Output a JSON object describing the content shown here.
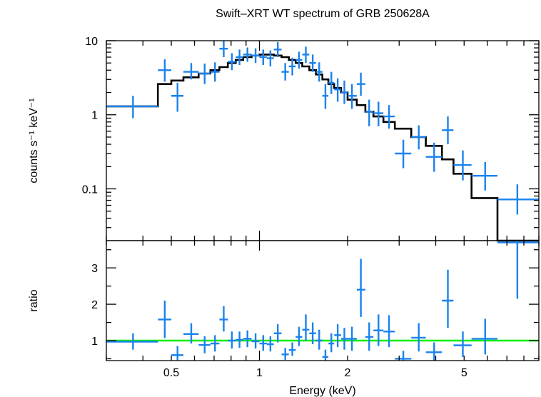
{
  "colors": {
    "data": "#1a82ee",
    "model": "#000000",
    "ratio_line": "#00ee00",
    "axes": "#000000"
  },
  "chart_data": [
    {
      "type": "line",
      "panel": "spectrum",
      "title": "Swift–XRT WT spectrum of GRB 250628A",
      "xlabel": "Energy (keV)",
      "ylabel": "counts s⁻¹ keV⁻¹",
      "xscale": "log",
      "yscale": "log",
      "xlim": [
        0.3,
        9.0
      ],
      "ylim": [
        0.02,
        10
      ],
      "yticks": [
        {
          "v": 0.1,
          "label": "0.1"
        },
        {
          "v": 1,
          "label": "1"
        },
        {
          "v": 10,
          "label": "10"
        }
      ],
      "series": [
        {
          "kind": "model-step",
          "edges": [
            0.3,
            0.45,
            0.5,
            0.55,
            0.62,
            0.68,
            0.73,
            0.78,
            0.83,
            0.88,
            0.94,
            1.0,
            1.06,
            1.12,
            1.19,
            1.26,
            1.33,
            1.4,
            1.48,
            1.56,
            1.64,
            1.72,
            1.8,
            1.9,
            2.0,
            2.15,
            2.3,
            2.45,
            2.65,
            2.9,
            3.3,
            3.7,
            4.2,
            4.6,
            5.3,
            6.5,
            9.0
          ],
          "values": [
            1.3,
            2.6,
            2.9,
            3.2,
            3.6,
            4.0,
            4.4,
            5.0,
            5.5,
            6.0,
            6.3,
            6.5,
            6.5,
            6.3,
            6.0,
            5.5,
            5.0,
            4.5,
            4.0,
            3.5,
            3.0,
            2.6,
            2.3,
            2.0,
            1.6,
            1.35,
            1.1,
            0.95,
            0.8,
            0.65,
            0.5,
            0.38,
            0.25,
            0.16,
            0.075,
            0.015
          ]
        },
        {
          "kind": "data-errorbars",
          "points": [
            {
              "x": 0.37,
              "xlo": 0.3,
              "xhi": 0.45,
              "y": 1.3,
              "ylo": 0.9,
              "yhi": 1.8
            },
            {
              "x": 0.475,
              "xlo": 0.45,
              "xhi": 0.5,
              "y": 4.0,
              "ylo": 2.8,
              "yhi": 5.6
            },
            {
              "x": 0.525,
              "xlo": 0.5,
              "xhi": 0.55,
              "y": 1.8,
              "ylo": 1.1,
              "yhi": 2.7
            },
            {
              "x": 0.585,
              "xlo": 0.55,
              "xhi": 0.62,
              "y": 3.8,
              "ylo": 3.0,
              "yhi": 5.0
            },
            {
              "x": 0.65,
              "xlo": 0.62,
              "xhi": 0.68,
              "y": 3.6,
              "ylo": 2.6,
              "yhi": 4.9
            },
            {
              "x": 0.705,
              "xlo": 0.68,
              "xhi": 0.73,
              "y": 3.8,
              "ylo": 2.8,
              "yhi": 5.1
            },
            {
              "x": 0.755,
              "xlo": 0.73,
              "xhi": 0.78,
              "y": 7.8,
              "ylo": 6.0,
              "yhi": 10.0
            },
            {
              "x": 0.805,
              "xlo": 0.78,
              "xhi": 0.83,
              "y": 5.2,
              "ylo": 4.0,
              "yhi": 6.8
            },
            {
              "x": 0.855,
              "xlo": 0.83,
              "xhi": 0.88,
              "y": 6.0,
              "ylo": 4.7,
              "yhi": 7.6
            },
            {
              "x": 0.91,
              "xlo": 0.88,
              "xhi": 0.94,
              "y": 6.5,
              "ylo": 5.2,
              "yhi": 8.1
            },
            {
              "x": 0.97,
              "xlo": 0.94,
              "xhi": 1.0,
              "y": 6.3,
              "ylo": 5.0,
              "yhi": 7.9
            },
            {
              "x": 1.03,
              "xlo": 1.0,
              "xhi": 1.06,
              "y": 6.0,
              "ylo": 4.7,
              "yhi": 7.6
            },
            {
              "x": 1.09,
              "xlo": 1.06,
              "xhi": 1.12,
              "y": 5.8,
              "ylo": 4.5,
              "yhi": 7.4
            },
            {
              "x": 1.155,
              "xlo": 1.12,
              "xhi": 1.19,
              "y": 7.6,
              "ylo": 6.0,
              "yhi": 9.6
            },
            {
              "x": 1.225,
              "xlo": 1.19,
              "xhi": 1.26,
              "y": 3.8,
              "ylo": 2.9,
              "yhi": 5.0
            },
            {
              "x": 1.295,
              "xlo": 1.26,
              "xhi": 1.33,
              "y": 4.5,
              "ylo": 3.4,
              "yhi": 5.9
            },
            {
              "x": 1.365,
              "xlo": 1.33,
              "xhi": 1.4,
              "y": 5.5,
              "ylo": 4.2,
              "yhi": 7.1
            },
            {
              "x": 1.44,
              "xlo": 1.4,
              "xhi": 1.48,
              "y": 6.5,
              "ylo": 5.0,
              "yhi": 8.3
            },
            {
              "x": 1.52,
              "xlo": 1.48,
              "xhi": 1.56,
              "y": 5.0,
              "ylo": 3.8,
              "yhi": 6.5
            },
            {
              "x": 1.6,
              "xlo": 1.56,
              "xhi": 1.64,
              "y": 3.8,
              "ylo": 2.8,
              "yhi": 5.1
            },
            {
              "x": 1.68,
              "xlo": 1.64,
              "xhi": 1.72,
              "y": 1.8,
              "ylo": 1.2,
              "yhi": 2.6
            },
            {
              "x": 1.76,
              "xlo": 1.72,
              "xhi": 1.8,
              "y": 2.7,
              "ylo": 1.9,
              "yhi": 3.8
            },
            {
              "x": 1.85,
              "xlo": 1.8,
              "xhi": 1.9,
              "y": 2.2,
              "ylo": 1.5,
              "yhi": 3.1
            },
            {
              "x": 1.95,
              "xlo": 1.9,
              "xhi": 2.0,
              "y": 2.0,
              "ylo": 1.4,
              "yhi": 2.9
            },
            {
              "x": 2.07,
              "xlo": 2.0,
              "xhi": 2.15,
              "y": 1.8,
              "ylo": 1.2,
              "yhi": 2.6
            },
            {
              "x": 2.22,
              "xlo": 2.15,
              "xhi": 2.3,
              "y": 2.6,
              "ylo": 1.8,
              "yhi": 3.7
            },
            {
              "x": 2.37,
              "xlo": 2.3,
              "xhi": 2.45,
              "y": 1.1,
              "ylo": 0.7,
              "yhi": 1.6
            },
            {
              "x": 2.55,
              "xlo": 2.45,
              "xhi": 2.65,
              "y": 1.05,
              "ylo": 0.7,
              "yhi": 1.5
            },
            {
              "x": 2.77,
              "xlo": 2.65,
              "xhi": 2.9,
              "y": 0.95,
              "ylo": 0.65,
              "yhi": 1.35
            },
            {
              "x": 3.1,
              "xlo": 2.9,
              "xhi": 3.3,
              "y": 0.3,
              "ylo": 0.19,
              "yhi": 0.46
            },
            {
              "x": 3.5,
              "xlo": 3.3,
              "xhi": 3.7,
              "y": 0.5,
              "ylo": 0.34,
              "yhi": 0.72
            },
            {
              "x": 3.95,
              "xlo": 3.7,
              "xhi": 4.2,
              "y": 0.27,
              "ylo": 0.17,
              "yhi": 0.42
            },
            {
              "x": 4.4,
              "xlo": 4.2,
              "xhi": 4.6,
              "y": 0.62,
              "ylo": 0.4,
              "yhi": 0.95
            },
            {
              "x": 4.95,
              "xlo": 4.6,
              "xhi": 5.3,
              "y": 0.21,
              "ylo": 0.13,
              "yhi": 0.33
            },
            {
              "x": 5.9,
              "xlo": 5.3,
              "xhi": 6.5,
              "y": 0.15,
              "ylo": 0.095,
              "yhi": 0.23
            },
            {
              "x": 7.6,
              "xlo": 6.5,
              "xhi": 9.0,
              "y": 0.072,
              "ylo": 0.045,
              "yhi": 0.115
            }
          ]
        }
      ]
    },
    {
      "type": "scatter",
      "panel": "ratio",
      "xlabel": "Energy (keV)",
      "ylabel": "ratio",
      "xscale": "log",
      "xlim": [
        0.3,
        9.0
      ],
      "ylim": [
        0.45,
        3.75
      ],
      "xticks": [
        {
          "v": 0.5,
          "label": "0.5"
        },
        {
          "v": 1,
          "label": "1"
        },
        {
          "v": 2,
          "label": "2"
        },
        {
          "v": 5,
          "label": "5"
        }
      ],
      "yticks": [
        {
          "v": 1,
          "label": "1"
        },
        {
          "v": 2,
          "label": "2"
        },
        {
          "v": 3,
          "label": "3"
        }
      ],
      "reference_line": 1.0,
      "points": [
        {
          "x": 0.37,
          "xlo": 0.3,
          "xhi": 0.45,
          "y": 0.97,
          "ylo": 0.75,
          "yhi": 1.2
        },
        {
          "x": 0.475,
          "xlo": 0.45,
          "xhi": 0.5,
          "y": 1.58,
          "ylo": 1.07,
          "yhi": 2.1
        },
        {
          "x": 0.525,
          "xlo": 0.5,
          "xhi": 0.55,
          "y": 0.6,
          "ylo": 0.4,
          "yhi": 0.85
        },
        {
          "x": 0.585,
          "xlo": 0.55,
          "xhi": 0.62,
          "y": 1.18,
          "ylo": 0.92,
          "yhi": 1.48
        },
        {
          "x": 0.65,
          "xlo": 0.62,
          "xhi": 0.68,
          "y": 0.88,
          "ylo": 0.65,
          "yhi": 1.12
        },
        {
          "x": 0.705,
          "xlo": 0.68,
          "xhi": 0.73,
          "y": 0.92,
          "ylo": 0.7,
          "yhi": 1.15
        },
        {
          "x": 0.755,
          "xlo": 0.73,
          "xhi": 0.78,
          "y": 1.58,
          "ylo": 1.25,
          "yhi": 1.95
        },
        {
          "x": 0.805,
          "xlo": 0.78,
          "xhi": 0.83,
          "y": 1.0,
          "ylo": 0.78,
          "yhi": 1.25
        },
        {
          "x": 0.855,
          "xlo": 0.83,
          "xhi": 0.88,
          "y": 1.02,
          "ylo": 0.8,
          "yhi": 1.25
        },
        {
          "x": 0.91,
          "xlo": 0.88,
          "xhi": 0.94,
          "y": 1.05,
          "ylo": 0.82,
          "yhi": 1.28
        },
        {
          "x": 0.97,
          "xlo": 0.94,
          "xhi": 1.0,
          "y": 0.98,
          "ylo": 0.78,
          "yhi": 1.2
        },
        {
          "x": 1.03,
          "xlo": 1.0,
          "xhi": 1.06,
          "y": 0.92,
          "ylo": 0.72,
          "yhi": 1.15
        },
        {
          "x": 1.09,
          "xlo": 1.06,
          "xhi": 1.12,
          "y": 0.9,
          "ylo": 0.7,
          "yhi": 1.12
        },
        {
          "x": 1.155,
          "xlo": 1.12,
          "xhi": 1.19,
          "y": 1.2,
          "ylo": 0.95,
          "yhi": 1.45
        },
        {
          "x": 1.225,
          "xlo": 1.19,
          "xhi": 1.26,
          "y": 0.62,
          "ylo": 0.47,
          "yhi": 0.8
        },
        {
          "x": 1.295,
          "xlo": 1.26,
          "xhi": 1.33,
          "y": 0.74,
          "ylo": 0.58,
          "yhi": 0.95
        },
        {
          "x": 1.365,
          "xlo": 1.33,
          "xhi": 1.4,
          "y": 1.1,
          "ylo": 0.85,
          "yhi": 1.38
        },
        {
          "x": 1.44,
          "xlo": 1.4,
          "xhi": 1.48,
          "y": 1.3,
          "ylo": 1.0,
          "yhi": 1.72
        },
        {
          "x": 1.52,
          "xlo": 1.48,
          "xhi": 1.56,
          "y": 1.2,
          "ylo": 0.9,
          "yhi": 1.5
        },
        {
          "x": 1.6,
          "xlo": 1.56,
          "xhi": 1.64,
          "y": 1.0,
          "ylo": 0.75,
          "yhi": 1.3
        },
        {
          "x": 1.68,
          "xlo": 1.64,
          "xhi": 1.72,
          "y": 0.55,
          "ylo": 0.45,
          "yhi": 0.75
        },
        {
          "x": 1.76,
          "xlo": 1.72,
          "xhi": 1.8,
          "y": 0.92,
          "ylo": 0.68,
          "yhi": 1.2
        },
        {
          "x": 1.85,
          "xlo": 1.8,
          "xhi": 1.9,
          "y": 1.15,
          "ylo": 0.82,
          "yhi": 1.45
        },
        {
          "x": 1.95,
          "xlo": 1.9,
          "xhi": 2.0,
          "y": 1.05,
          "ylo": 0.75,
          "yhi": 1.35
        },
        {
          "x": 2.07,
          "xlo": 2.0,
          "xhi": 2.15,
          "y": 1.05,
          "ylo": 0.72,
          "yhi": 1.38
        },
        {
          "x": 2.22,
          "xlo": 2.15,
          "xhi": 2.3,
          "y": 2.4,
          "ylo": 1.65,
          "yhi": 3.25
        },
        {
          "x": 2.37,
          "xlo": 2.3,
          "xhi": 2.45,
          "y": 1.1,
          "ylo": 0.72,
          "yhi": 1.5
        },
        {
          "x": 2.55,
          "xlo": 2.45,
          "xhi": 2.65,
          "y": 1.28,
          "ylo": 0.85,
          "yhi": 1.72
        },
        {
          "x": 2.77,
          "xlo": 2.65,
          "xhi": 2.9,
          "y": 1.25,
          "ylo": 0.82,
          "yhi": 1.7
        },
        {
          "x": 3.1,
          "xlo": 2.9,
          "xhi": 3.3,
          "y": 0.5,
          "ylo": 0.45,
          "yhi": 0.72
        },
        {
          "x": 3.5,
          "xlo": 3.3,
          "xhi": 3.7,
          "y": 1.08,
          "ylo": 0.7,
          "yhi": 1.48
        },
        {
          "x": 3.95,
          "xlo": 3.7,
          "xhi": 4.2,
          "y": 0.68,
          "ylo": 0.45,
          "yhi": 0.95
        },
        {
          "x": 4.4,
          "xlo": 4.2,
          "xhi": 4.6,
          "y": 2.1,
          "ylo": 1.35,
          "yhi": 2.95
        },
        {
          "x": 4.95,
          "xlo": 4.6,
          "xhi": 5.3,
          "y": 0.87,
          "ylo": 0.55,
          "yhi": 1.25
        },
        {
          "x": 5.9,
          "xlo": 5.3,
          "xhi": 6.5,
          "y": 1.05,
          "ylo": 0.62,
          "yhi": 1.6
        },
        {
          "x": 7.6,
          "xlo": 6.5,
          "xhi": 9.0,
          "y": 3.7,
          "ylo": 2.15,
          "yhi": 3.75
        }
      ]
    }
  ]
}
